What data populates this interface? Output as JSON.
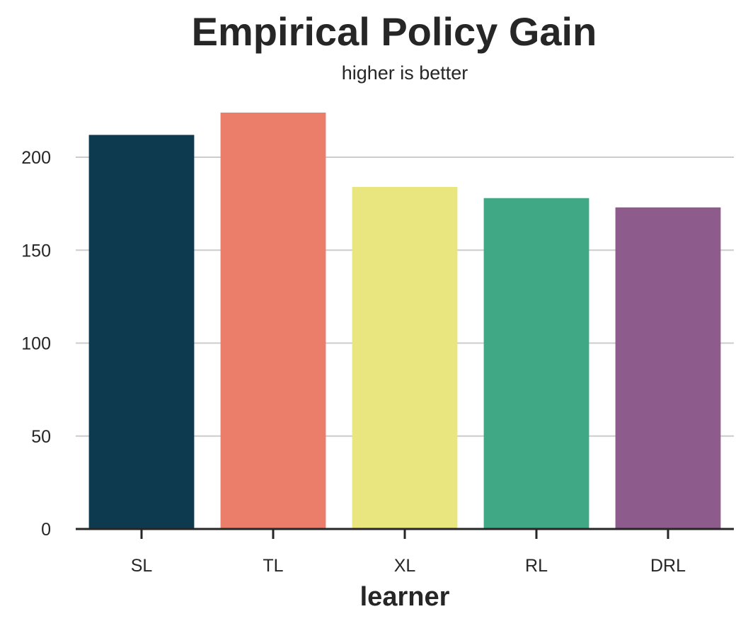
{
  "chart_data": {
    "type": "bar",
    "title": "Empirical Policy Gain",
    "subtitle": "higher is better",
    "xlabel": "learner",
    "ylabel": "",
    "categories": [
      "SL",
      "TL",
      "XL",
      "RL",
      "DRL"
    ],
    "values": [
      212,
      224,
      184,
      178,
      173
    ],
    "colors": [
      "#0e3a50",
      "#eb7e6b",
      "#e9e67f",
      "#41a886",
      "#8d5c8d"
    ],
    "ylim": [
      0,
      230
    ],
    "yticks": [
      0,
      50,
      100,
      150,
      200
    ],
    "grid": true,
    "legend": "none"
  }
}
